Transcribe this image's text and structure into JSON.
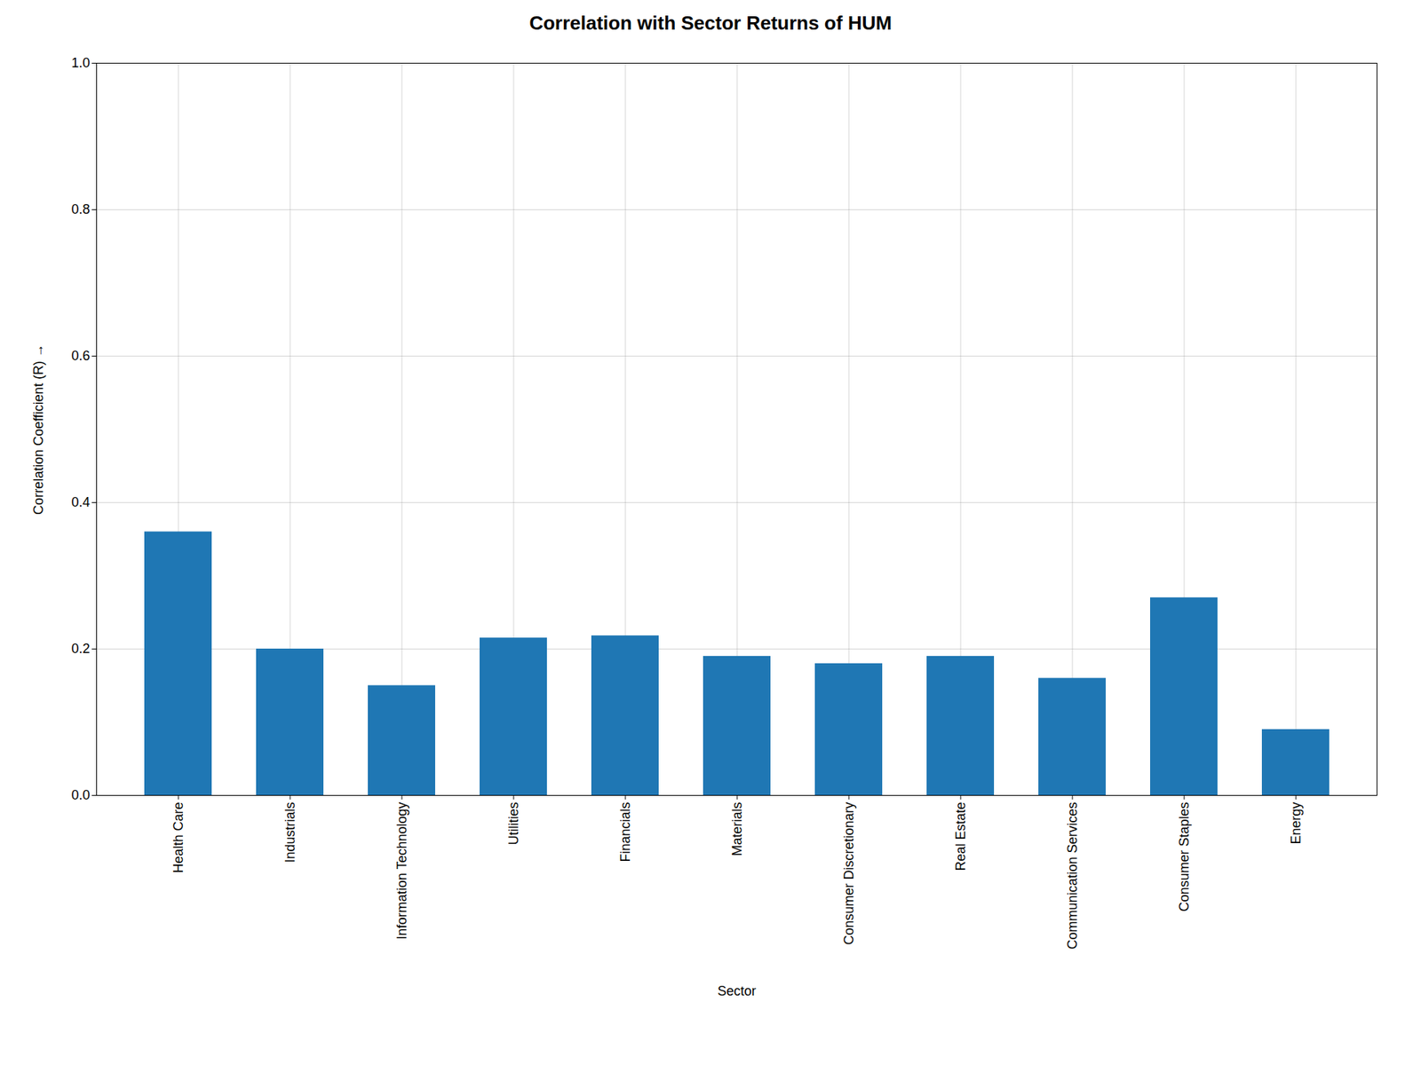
{
  "chart_data": {
    "type": "bar",
    "title": "Correlation with Sector Returns of HUM",
    "xlabel": "Sector",
    "ylabel": "Correlation Coefficient (R)",
    "categories": [
      "Health Care",
      "Industrials",
      "Information Technology",
      "Utilities",
      "Financials",
      "Materials",
      "Consumer Discretionary",
      "Real Estate",
      "Communication Services",
      "Consumer Staples",
      "Energy"
    ],
    "values": [
      0.36,
      0.2,
      0.15,
      0.215,
      0.218,
      0.19,
      0.18,
      0.19,
      0.16,
      0.27,
      0.09
    ],
    "color": "#1f77b4",
    "ylim": [
      0.0,
      1.0
    ],
    "yticks": [
      {
        "value": 0.0,
        "label": "0.0"
      },
      {
        "value": 0.2,
        "label": "0.2"
      },
      {
        "value": 0.4,
        "label": "0.4"
      },
      {
        "value": 0.6,
        "label": "0.6"
      },
      {
        "value": 0.8,
        "label": "0.8"
      },
      {
        "value": 1.0,
        "label": "1.0"
      }
    ],
    "grid": true
  }
}
